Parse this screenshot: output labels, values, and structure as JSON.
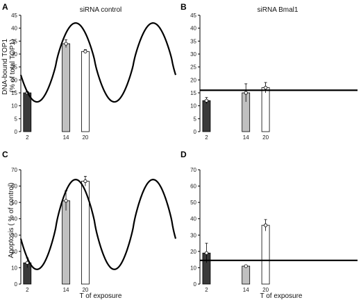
{
  "figure": {
    "col_titles": [
      "siRNA control",
      "siRNA Bmal1"
    ],
    "ylabel_top": "DNA-bound TOP1\n(% of total TOP1)",
    "ylabel_bottom": "Apoptosis ( % of control)",
    "xlabel": "T of exposure"
  },
  "chart_data": [
    {
      "type": "bar",
      "panel": "A",
      "title": "siRNA control",
      "ylabel": "DNA-bound TOP1\n(% of total TOP1)",
      "xlabel": "",
      "ylim": [
        0,
        45
      ],
      "yticks": [
        0,
        5,
        10,
        15,
        20,
        25,
        30,
        35,
        40,
        45
      ],
      "xlim": [
        0,
        48
      ],
      "categories": [
        "2",
        "14",
        "20"
      ],
      "x": [
        2,
        14,
        20
      ],
      "values": [
        15,
        34,
        31
      ],
      "errors": [
        0.5,
        1.5,
        0.7
      ],
      "bar_colors": [
        "#3a3a3a",
        "#c0c0c0",
        "#ffffff"
      ],
      "curve": {
        "type": "cosine",
        "min": 11.5,
        "max": 42,
        "period": 24,
        "peak_x": 17
      }
    },
    {
      "type": "bar",
      "panel": "B",
      "title": "siRNA Bmal1",
      "ylabel": "",
      "xlabel": "",
      "ylim": [
        0,
        45
      ],
      "yticks": [
        0,
        5,
        10,
        15,
        20,
        25,
        30,
        35,
        40,
        45
      ],
      "xlim": [
        0,
        48
      ],
      "categories": [
        "2",
        "14",
        "20"
      ],
      "x": [
        2,
        14,
        20
      ],
      "values": [
        12,
        15,
        17
      ],
      "errors": [
        1.2,
        3.5,
        2
      ],
      "bar_colors": [
        "#3a3a3a",
        "#c0c0c0",
        "#ffffff"
      ],
      "flat_line": 16
    },
    {
      "type": "bar",
      "panel": "C",
      "title": "",
      "ylabel": "Apoptosis ( % of control)",
      "xlabel": "T of exposure",
      "ylim": [
        0,
        70
      ],
      "yticks": [
        0,
        10,
        20,
        30,
        40,
        50,
        60,
        70
      ],
      "xlim": [
        0,
        48
      ],
      "categories": [
        "2",
        "14",
        "20"
      ],
      "x": [
        2,
        14,
        20
      ],
      "values": [
        13,
        51,
        63
      ],
      "errors": [
        3,
        6,
        3
      ],
      "bar_colors": [
        "#3a3a3a",
        "#c0c0c0",
        "#ffffff"
      ],
      "curve": {
        "type": "cosine",
        "min": 9,
        "max": 64,
        "period": 24,
        "peak_x": 17
      }
    },
    {
      "type": "bar",
      "panel": "D",
      "title": "",
      "ylabel": "",
      "xlabel": "T of exposure",
      "ylim": [
        0,
        70
      ],
      "yticks": [
        0,
        10,
        20,
        30,
        40,
        50,
        60,
        70
      ],
      "xlim": [
        0,
        48
      ],
      "categories": [
        "2",
        "14",
        "20"
      ],
      "x": [
        2,
        14,
        20
      ],
      "values": [
        19,
        11,
        36
      ],
      "errors": [
        6,
        0.5,
        3.5
      ],
      "bar_colors": [
        "#3a3a3a",
        "#c0c0c0",
        "#ffffff"
      ],
      "flat_line": 14.5
    }
  ]
}
